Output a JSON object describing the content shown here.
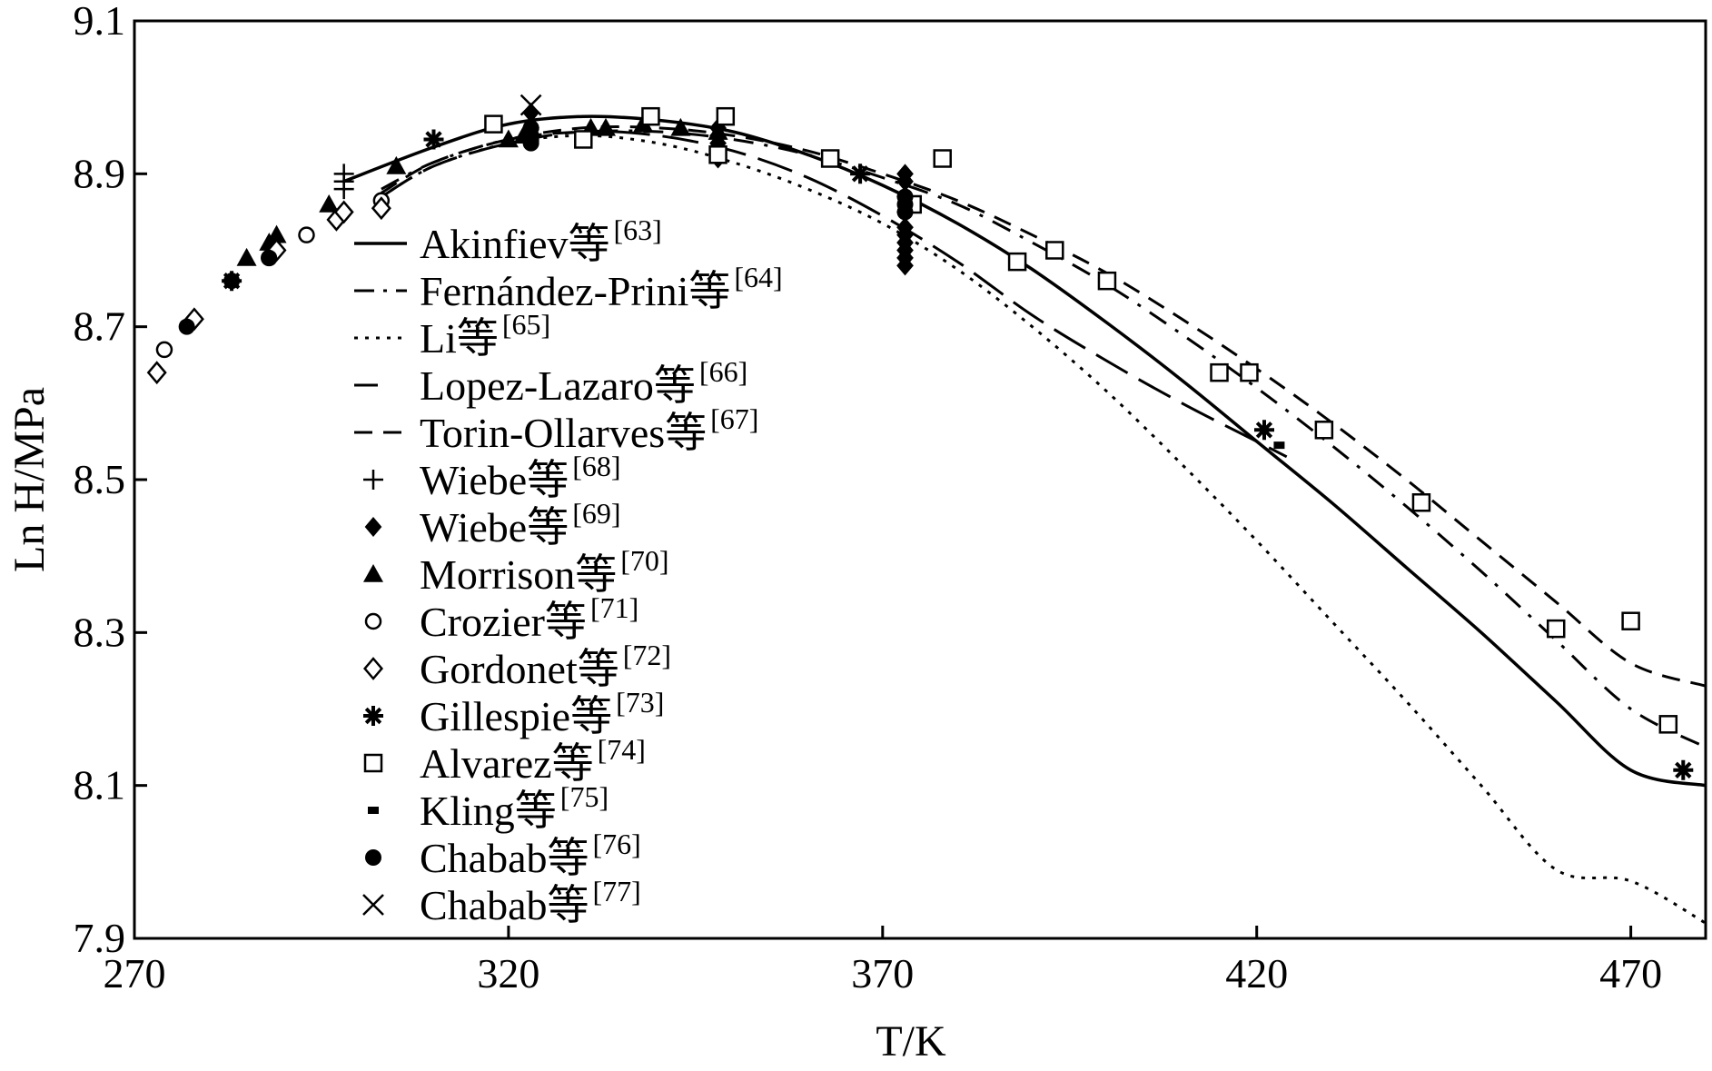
{
  "chart_data": {
    "type": "line",
    "title": "",
    "xlabel": "T/K",
    "ylabel": "Ln H/MPa",
    "xlim": [
      270,
      480
    ],
    "ylim": [
      7.9,
      9.1
    ],
    "xticks": [
      270,
      320,
      370,
      420,
      470
    ],
    "yticks": [
      7.9,
      8.1,
      8.3,
      8.5,
      8.7,
      8.9,
      9.1
    ],
    "xtick_labels": [
      "270",
      "320",
      "370",
      "420",
      "470"
    ],
    "ytick_labels": [
      "7.9",
      "8.1",
      "8.3",
      "8.5",
      "8.7",
      "8.9",
      "9.1"
    ],
    "grid": false,
    "legend_position": "center-left",
    "series": [
      {
        "name": "Akinfiev等",
        "ref": "[63]",
        "kind": "line",
        "style": "solid",
        "x": [
          298,
          310,
          320,
          330,
          340,
          350,
          360,
          370,
          380,
          390,
          400,
          410,
          420,
          430,
          440,
          450,
          460,
          470,
          480
        ],
        "y": [
          8.89,
          8.935,
          8.965,
          8.975,
          8.97,
          8.955,
          8.925,
          8.885,
          8.835,
          8.775,
          8.705,
          8.63,
          8.55,
          8.47,
          8.385,
          8.3,
          8.21,
          8.12,
          8.1
        ]
      },
      {
        "name": "Fernández-Prini等",
        "ref": "[64]",
        "kind": "line",
        "style": "dashdot",
        "x": [
          303,
          310,
          320,
          330,
          340,
          350,
          360,
          370,
          380,
          390,
          400,
          410,
          420,
          430,
          440,
          450,
          460,
          470,
          480
        ],
        "y": [
          8.88,
          8.915,
          8.945,
          8.955,
          8.955,
          8.945,
          8.925,
          8.895,
          8.86,
          8.81,
          8.755,
          8.69,
          8.62,
          8.545,
          8.465,
          8.38,
          8.29,
          8.2,
          8.15
        ]
      },
      {
        "name": "Li等",
        "ref": "[65]",
        "kind": "line",
        "style": "dotted",
        "x": [
          303,
          310,
          320,
          330,
          340,
          350,
          360,
          370,
          380,
          390,
          400,
          410,
          420,
          430,
          440,
          450,
          460,
          470,
          480
        ],
        "y": [
          8.87,
          8.91,
          8.94,
          8.95,
          8.94,
          8.915,
          8.88,
          8.835,
          8.775,
          8.7,
          8.615,
          8.52,
          8.42,
          8.315,
          8.21,
          8.1,
          7.99,
          7.975,
          7.92
        ]
      },
      {
        "name": "Lopez-Lazaro等",
        "ref": "[66]",
        "kind": "line",
        "style": "longdash",
        "x": [
          303,
          310,
          320,
          330,
          340,
          350,
          360,
          370,
          380,
          390,
          400,
          410,
          420,
          424
        ],
        "y": [
          8.87,
          8.91,
          8.94,
          8.955,
          8.95,
          8.93,
          8.895,
          8.845,
          8.785,
          8.715,
          8.655,
          8.6,
          8.55,
          8.53
        ]
      },
      {
        "name": "Torin-Ollarves等",
        "ref": "[67]",
        "kind": "line",
        "style": "dashed",
        "x": [
          303,
          310,
          320,
          330,
          340,
          350,
          360,
          370,
          380,
          390,
          400,
          410,
          420,
          430,
          440,
          450,
          460,
          470,
          480
        ],
        "y": [
          8.875,
          8.915,
          8.945,
          8.96,
          8.96,
          8.95,
          8.93,
          8.9,
          8.865,
          8.82,
          8.77,
          8.71,
          8.645,
          8.575,
          8.5,
          8.42,
          8.34,
          8.26,
          8.23
        ]
      },
      {
        "name": "Wiebe等",
        "ref": "[68]",
        "kind": "points",
        "marker": "plus",
        "x": [
          298,
          298,
          298
        ],
        "y": [
          8.9,
          8.89,
          8.88
        ]
      },
      {
        "name": "Wiebe等",
        "ref": "[69]",
        "kind": "points",
        "marker": "diamond-filled",
        "x": [
          323,
          323,
          323,
          348,
          348,
          348,
          348,
          373,
          373,
          373,
          373,
          373,
          373,
          373,
          373,
          373,
          373
        ],
        "y": [
          8.98,
          8.96,
          8.95,
          8.96,
          8.95,
          8.94,
          8.92,
          8.9,
          8.89,
          8.87,
          8.85,
          8.83,
          8.82,
          8.81,
          8.8,
          8.79,
          8.78
        ]
      },
      {
        "name": "Morrison等",
        "ref": "[70]",
        "kind": "points",
        "marker": "triangle",
        "x": [
          285,
          288,
          289,
          296,
          305,
          320,
          322,
          331,
          333,
          338,
          343,
          348
        ],
        "y": [
          8.79,
          8.81,
          8.82,
          8.86,
          8.91,
          8.945,
          8.95,
          8.96,
          8.96,
          8.965,
          8.96,
          8.955
        ]
      },
      {
        "name": "Crozier等",
        "ref": "[71]",
        "kind": "points",
        "marker": "circle-open",
        "x": [
          274,
          288,
          293,
          303
        ],
        "y": [
          8.67,
          8.79,
          8.82,
          8.865
        ]
      },
      {
        "name": "Gordonet等",
        "ref": "[72]",
        "kind": "points",
        "marker": "diamond-open",
        "x": [
          273,
          278,
          289,
          297,
          298,
          303
        ],
        "y": [
          8.64,
          8.71,
          8.8,
          8.84,
          8.85,
          8.855
        ]
      },
      {
        "name": "Gillespie等",
        "ref": "[73]",
        "kind": "points",
        "marker": "asterisk",
        "x": [
          283,
          310,
          323,
          367,
          421,
          477
        ],
        "y": [
          8.76,
          8.945,
          8.95,
          8.9,
          8.565,
          8.12
        ]
      },
      {
        "name": "Alvarez等",
        "ref": "[74]",
        "kind": "points",
        "marker": "square-open",
        "x": [
          318,
          330,
          339,
          349,
          348,
          363,
          374,
          378,
          388,
          393,
          400,
          415,
          419,
          429,
          442,
          460,
          470,
          475
        ],
        "y": [
          8.965,
          8.945,
          8.975,
          8.975,
          8.925,
          8.92,
          8.86,
          8.92,
          8.785,
          8.8,
          8.76,
          8.64,
          8.64,
          8.565,
          8.47,
          8.305,
          8.315,
          8.18
        ]
      },
      {
        "name": "Kling等",
        "ref": "[75]",
        "kind": "points",
        "marker": "small-rect",
        "x": [
          423
        ],
        "y": [
          8.545
        ]
      },
      {
        "name": "Chabab等",
        "ref": "[76]",
        "kind": "points",
        "marker": "circle-filled",
        "x": [
          277,
          283,
          288,
          323,
          323,
          323,
          323,
          373,
          373,
          373
        ],
        "y": [
          8.7,
          8.76,
          8.79,
          8.96,
          8.95,
          8.945,
          8.94,
          8.87,
          8.86,
          8.85
        ]
      },
      {
        "name": "Chabab等",
        "ref": "[77]",
        "kind": "points",
        "marker": "cross",
        "x": [
          323
        ],
        "y": [
          8.99
        ]
      }
    ]
  }
}
